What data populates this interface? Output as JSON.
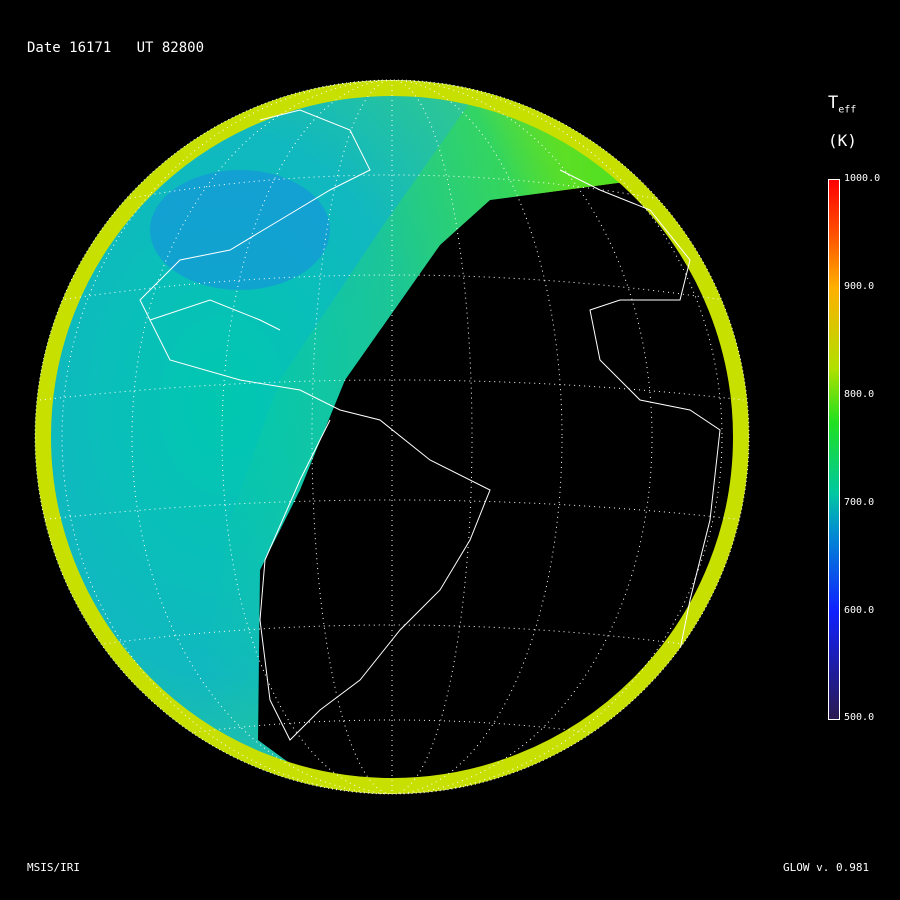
{
  "header": {
    "title": "Date 16171   UT 82800"
  },
  "footer": {
    "left": "MSIS/IRI",
    "right": "GLOW v. 0.981"
  },
  "colors": {
    "background": "#000000",
    "graticule": "#ffffff",
    "coastline": "#ffffff"
  },
  "chart_data": {
    "type": "heatmap",
    "title": "Date 16171   UT 82800",
    "projection": "orthographic globe",
    "colorbar": {
      "label": "T",
      "label_sub": "eff",
      "unit": "(K)",
      "range": [
        500,
        1000
      ],
      "ticks": [
        "500.0",
        "600.0",
        "700.0",
        "800.0",
        "900.0",
        "1000.0"
      ],
      "colormap": [
        "#2a1a50",
        "#1020ff",
        "#00c8a0",
        "#20e020",
        "#ffb000",
        "#ff0000"
      ]
    },
    "regions": [
      {
        "name": "dayside interior",
        "approx_value": 700
      },
      {
        "name": "near terminator",
        "approx_value": 770
      },
      {
        "name": "limb",
        "approx_value": 850
      },
      {
        "name": "nightside",
        "approx_value": null
      }
    ]
  }
}
